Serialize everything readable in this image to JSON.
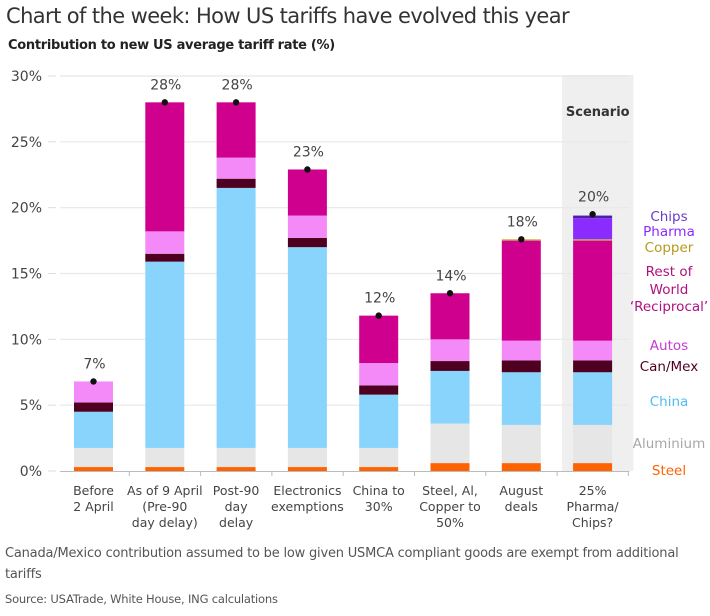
{
  "header": {
    "title": "Chart of the week: How US tariffs have evolved this year",
    "subtitle": "Contribution to new US average tariff rate (%)"
  },
  "footer": {
    "note": "Canada/Mexico contribution assumed to be low given USMCA compliant goods are exempt from additional tariffs",
    "source": "Source: USATrade, White House, ING calculations"
  },
  "chart_data": {
    "type": "bar",
    "stacked": true,
    "title": "Chart of the week: How US tariffs have evolved this year",
    "subtitle": "Contribution to new US average tariff rate (%)",
    "xlabel": "",
    "ylabel": "",
    "ylim": [
      0,
      30
    ],
    "yticks": [
      0,
      5,
      10,
      15,
      20,
      25,
      30
    ],
    "ytick_labels": [
      "0%",
      "5%",
      "10%",
      "15%",
      "20%",
      "25%",
      "30%"
    ],
    "grid": true,
    "legend_position": "right",
    "categories": [
      [
        "Before",
        "2 April"
      ],
      [
        "As of 9 April",
        "(Pre-90",
        "day delay)"
      ],
      [
        "Post-90",
        "day",
        "delay"
      ],
      [
        "Electronics",
        "exemptions"
      ],
      [
        "China to",
        "30%"
      ],
      [
        "Steel, Al,",
        "Copper to",
        "50%"
      ],
      [
        "August",
        "deals"
      ],
      [
        "25%",
        "Pharma/",
        "Chips?"
      ]
    ],
    "shaded_region": {
      "label": "Scenario",
      "categories": [
        7
      ],
      "color": "#EFEFEF"
    },
    "total_labels": [
      "7%",
      "28%",
      "28%",
      "23%",
      "12%",
      "14%",
      "18%",
      "20%"
    ],
    "totals": [
      6.8,
      28.0,
      28.0,
      22.9,
      11.8,
      13.5,
      17.6,
      19.5
    ],
    "series": [
      {
        "name": "Steel",
        "color": "#FF6200",
        "values": [
          0.3,
          0.3,
          0.3,
          0.3,
          0.3,
          0.6,
          0.6,
          0.6
        ]
      },
      {
        "name": "Aluminium",
        "color": "#E6E6E6",
        "label_color": "#A8A8A8",
        "values": [
          1.45,
          1.45,
          1.45,
          1.45,
          1.45,
          3.0,
          2.9,
          2.9
        ]
      },
      {
        "name": "China",
        "color": "#89D4FC",
        "label_color": "#4FBDF0",
        "values": [
          2.75,
          14.15,
          19.75,
          15.25,
          4.05,
          4.0,
          4.0,
          4.0
        ]
      },
      {
        "name": "Can/Mex",
        "color": "#4E0020",
        "values": [
          0.7,
          0.6,
          0.7,
          0.7,
          0.7,
          0.75,
          0.9,
          0.9
        ]
      },
      {
        "name": "Autos",
        "color": "#F48AF8",
        "label_color": "#C639D6",
        "values": [
          1.6,
          1.7,
          1.6,
          1.7,
          1.7,
          1.65,
          1.5,
          1.5
        ]
      },
      {
        "name": "Rest of World 'Reciprocal'",
        "label_lines": [
          "Rest of",
          "World",
          "‘Reciprocal’"
        ],
        "color": "#D0008F",
        "label_color": "#B0107F",
        "values": [
          0,
          9.8,
          4.2,
          3.5,
          3.6,
          3.5,
          7.6,
          7.6
        ]
      },
      {
        "name": "Copper",
        "color": "#C9B23A",
        "label_color": "#B59A1E",
        "values": [
          0,
          0,
          0,
          0,
          0,
          0,
          0.1,
          0.1
        ]
      },
      {
        "name": "Pharma",
        "color": "#8A2BFF",
        "values": [
          0,
          0,
          0,
          0,
          0,
          0,
          0,
          1.6
        ]
      },
      {
        "name": "Chips",
        "color": "#4B1FA8",
        "label_color": "#6A3CC9",
        "values": [
          0,
          0,
          0,
          0,
          0,
          0,
          0,
          0.2
        ]
      }
    ]
  }
}
